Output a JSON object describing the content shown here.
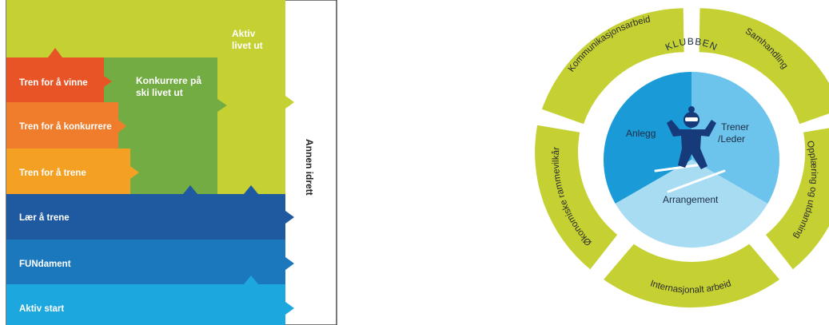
{
  "stage_model": {
    "stages": [
      {
        "label": "Tren for å vinne",
        "color": "#e85426"
      },
      {
        "label": "Tren for å konkurrere",
        "color": "#ef7d2c"
      },
      {
        "label": "Tren for å trene",
        "color": "#f4a023"
      },
      {
        "label": "Lær å trene",
        "color": "#1f5aa0"
      },
      {
        "label": "FUNdament",
        "color": "#1b78bd"
      },
      {
        "label": "Aktiv start",
        "color": "#1ca7de"
      }
    ],
    "competition_label_line1": "Konkurrere på",
    "competition_label_line2": "ski livet ut",
    "active_label_line1": "Aktiv",
    "active_label_line2": "livet ut",
    "other_sport_label": "Annen idrett",
    "colors": {
      "lime": "#c5d132",
      "green": "#74ac44",
      "frame": "#222222"
    }
  },
  "club_wheel": {
    "center_title": "KLUBBEN",
    "inner_segments": {
      "anlegg": "Anlegg",
      "trener_line1": "Trener",
      "trener_line2": "/Leder",
      "arrangement": "Arrangement"
    },
    "ring_segments": {
      "kommunikasjon": "Kommunikasjonsarbeid",
      "samhandling": "Samhandling",
      "opplaering": "Opplæring og utdanning",
      "internasjonalt": "Internasjonalt arbeid",
      "okonomiske": "Økonomiske rammevilkår"
    },
    "colors": {
      "ring": "#c5d132",
      "inner_dark": "#1a9ad7",
      "inner_mid": "#6cc3ec",
      "inner_light": "#a7dcf3",
      "skier": "#163a7a"
    }
  }
}
